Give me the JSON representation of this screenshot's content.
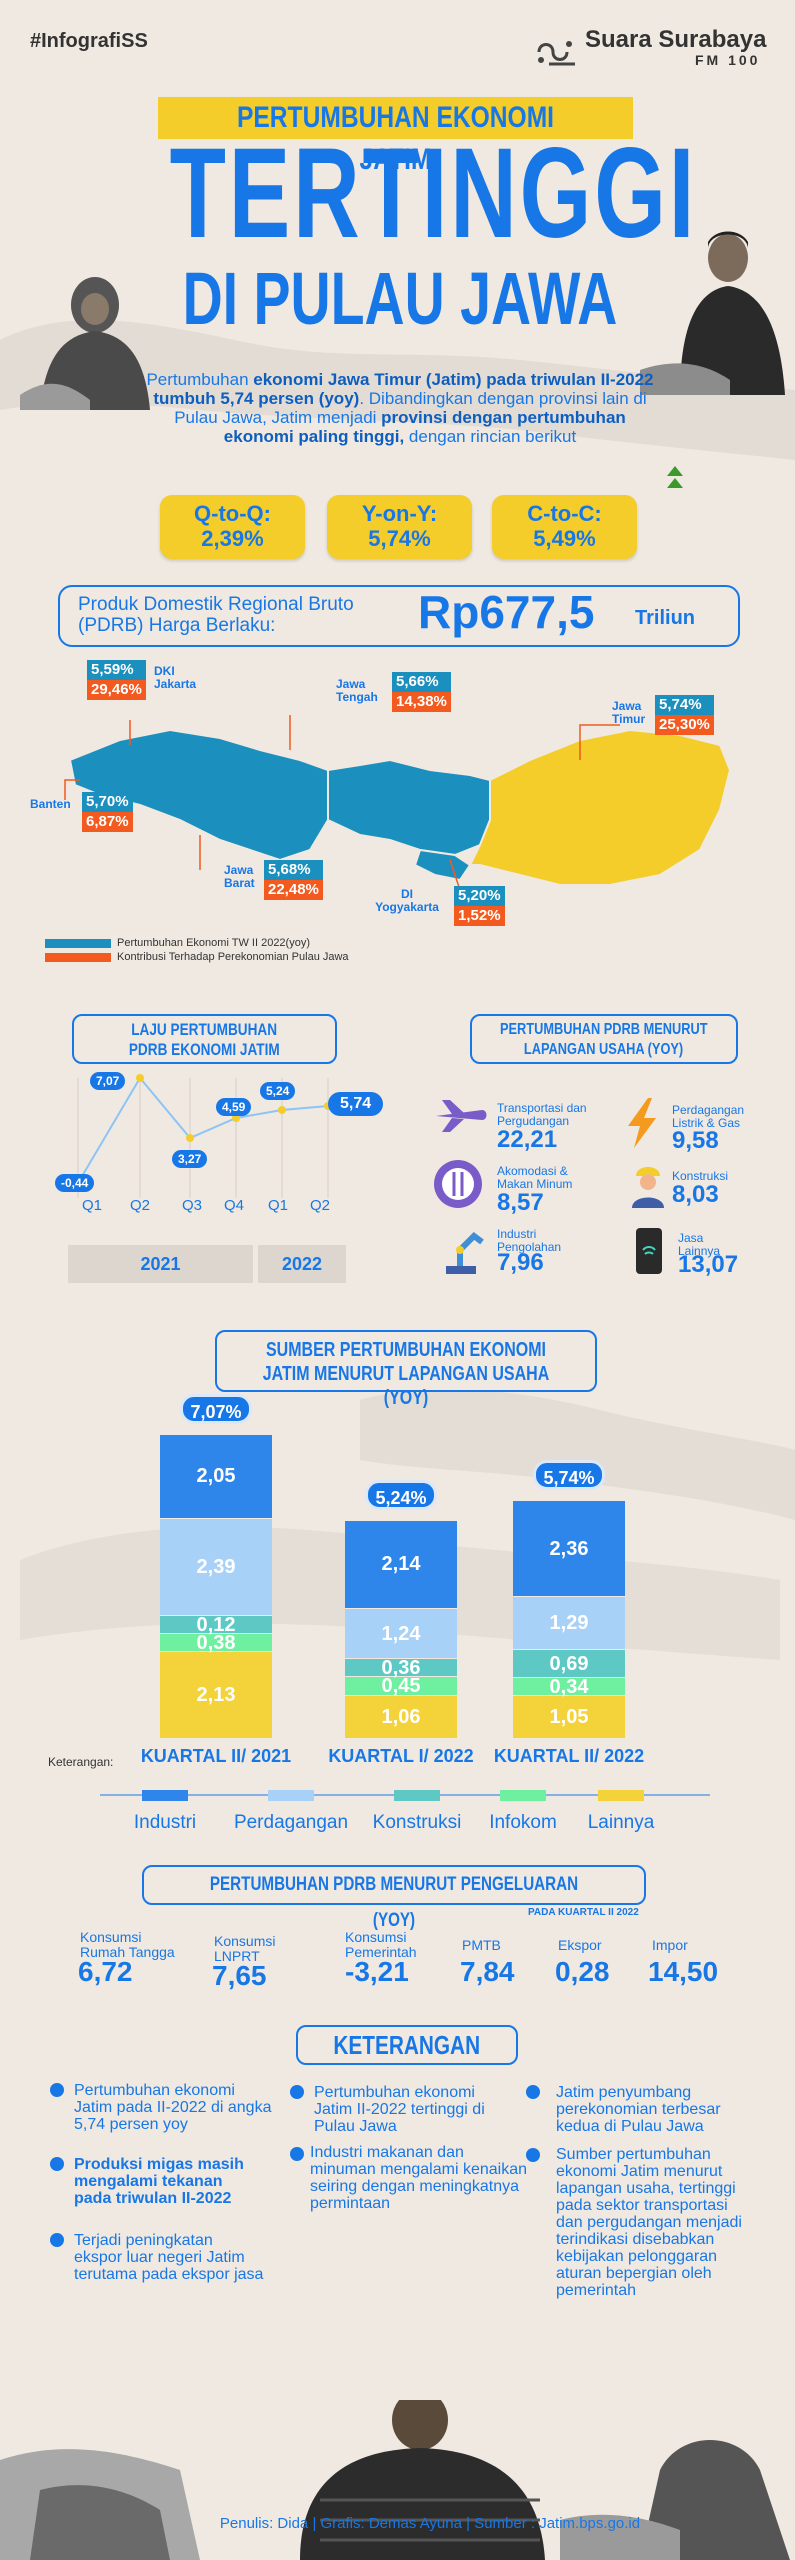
{
  "header": {
    "tag": "#InfografiSS",
    "brand": "Suara Surabaya",
    "brand_sub": "FM 100",
    "title_top": "PERTUMBUHAN EKONOMI JATIM",
    "title_main": "TERTINGGI",
    "title_bottom": "DI PULAU JAWA"
  },
  "intro": {
    "part1": "Pertumbuhan ",
    "bold1": "ekonomi Jawa Timur (Jatim) pada triwulan II-2022 tumbuh 5,74 persen (yoy)",
    "part2": ". Dibandingkan dengan provinsi lain di Pulau Jawa, Jatim menjadi ",
    "bold2": "provinsi dengan pertumbuhan ekonomi paling tinggi,",
    "part3": " dengan rincian berikut"
  },
  "growth": [
    {
      "label": "Q-to-Q:",
      "value": "2,39%"
    },
    {
      "label": "Y-on-Y:",
      "value": "5,74%"
    },
    {
      "label": "C-to-C:",
      "value": "5,49%"
    }
  ],
  "pdrb": {
    "label": "Produk Domestik Regional Bruto (PDRB) Harga Berlaku:",
    "value": "Rp677,5",
    "unit": "Triliun"
  },
  "map": {
    "dki": {
      "name": "DKI Jakarta",
      "growth": "5,59%",
      "contrib": "29,46%"
    },
    "banten": {
      "name": "Banten",
      "growth": "5,70%",
      "contrib": "6,87%"
    },
    "jabar": {
      "name": "Jawa Barat",
      "growth": "5,68%",
      "contrib": "22,48%"
    },
    "jateng": {
      "name": "Jawa Tengah",
      "growth": "5,66%",
      "contrib": "14,38%"
    },
    "diy": {
      "name": "DI Yogyakarta",
      "growth": "5,20%",
      "contrib": "1,52%"
    },
    "jatim": {
      "name": "Jawa Timur",
      "growth": "5,74%",
      "contrib": "25,30%"
    },
    "legend_growth": "Pertumbuhan Ekonomi TW II 2022(yoy)",
    "legend_contrib": "Kontribusi Terhadap Perekonomian Pulau Jawa",
    "colors": {
      "teal": "#1b8fbd",
      "orange": "#f25a1f",
      "jatim": "#f4cd2a"
    }
  },
  "laju": {
    "title_line1": "LAJU PERTUMBUHAN",
    "title_line2": "PDRB EKONOMI JATIM",
    "points": [
      {
        "q": "Q1",
        "v": "-0,44"
      },
      {
        "q": "Q2",
        "v": "7,07"
      },
      {
        "q": "Q3",
        "v": "3,27"
      },
      {
        "q": "Q4",
        "v": "4,59"
      },
      {
        "q": "Q1",
        "v": "5,24"
      },
      {
        "q": "Q2",
        "v": "5,74"
      }
    ],
    "year1": "2021",
    "year2": "2022"
  },
  "sectors": {
    "title_line1": "PERTUMBUHAN PDRB MENURUT",
    "title_line2": "LAPANGAN USAHA (YOY)",
    "items": [
      {
        "name": "Transportasi dan Pergudangan",
        "value": "22,21",
        "icon": "airplane-icon"
      },
      {
        "name": "Perdagangan Listrik & Gas",
        "value": "9,58",
        "icon": "lightning-icon"
      },
      {
        "name": "Akomodasi & Makan Minum",
        "value": "8,57",
        "icon": "utensils-icon"
      },
      {
        "name": "Konstruksi",
        "value": "8,03",
        "icon": "worker-icon"
      },
      {
        "name": "Industri Pengolahan",
        "value": "7,96",
        "icon": "robot-arm-icon"
      },
      {
        "name": "Jasa Lainnya",
        "value": "13,07",
        "icon": "phone-wifi-icon"
      }
    ]
  },
  "sumber": {
    "title_line1": "SUMBER PERTUMBUHAN EKONOMI",
    "title_line2": "JATIM MENURUT LAPANGAN USAHA (YOY)",
    "keterangan": "Keterangan:",
    "legend": [
      "Industri",
      "Perdagangan",
      "Konstruksi",
      "Infokom",
      "Lainnya"
    ]
  },
  "chart_data": {
    "type": "bar",
    "stacked": true,
    "categories": [
      "KUARTAL II/ 2021",
      "KUARTAL I/ 2022",
      "KUARTAL II/ 2022"
    ],
    "totals": [
      "7,07%",
      "5,24%",
      "5,74%"
    ],
    "series": [
      {
        "name": "Lainnya",
        "color": "#f4d23a",
        "values": [
          2.13,
          1.06,
          1.05
        ]
      },
      {
        "name": "Infokom",
        "color": "#6ff0a0",
        "values": [
          0.38,
          0.45,
          0.34
        ]
      },
      {
        "name": "Konstruksi",
        "color": "#5ec9c4",
        "values": [
          0.12,
          0.36,
          0.69
        ]
      },
      {
        "name": "Perdagangan",
        "color": "#a8d1f8",
        "values": [
          2.39,
          1.24,
          1.29
        ]
      },
      {
        "name": "Industri",
        "color": "#2f86ea",
        "values": [
          2.05,
          2.14,
          2.36
        ]
      }
    ],
    "value_labels": [
      [
        "2,13",
        "0,38",
        "0,12",
        "2,39",
        "2,05"
      ],
      [
        "1,06",
        "0,45",
        "0,36",
        "1,24",
        "2,14"
      ],
      [
        "1,05",
        "0,34",
        "0,69",
        "1,29",
        "2,36"
      ]
    ]
  },
  "pengeluaran": {
    "title": "PERTUMBUHAN PDRB MENURUT PENGELUARAN (YOY)",
    "subtitle": "PADA KUARTAL II 2022",
    "items": [
      {
        "name": "Konsumsi Rumah Tangga",
        "value": "6,72"
      },
      {
        "name": "Konsumsi LNPRT",
        "value": "7,65"
      },
      {
        "name": "Konsumsi Pemerintah",
        "value": "-3,21"
      },
      {
        "name": "PMTB",
        "value": "7,84"
      },
      {
        "name": "Ekspor",
        "value": "0,28"
      },
      {
        "name": "Impor",
        "value": "14,50"
      }
    ]
  },
  "keterangan": {
    "title": "KETERANGAN",
    "col1": [
      "Pertumbuhan ekonomi Jatim pada II-2022 di angka 5,74 persen yoy",
      "Produksi migas masih mengalami tekanan pada triwulan II-2022",
      "Terjadi peningkatan ekspor luar negeri Jatim terutama pada ekspor jasa"
    ],
    "col2": [
      "Pertumbuhan ekonomi Jatim II-2022 tertinggi di Pulau Jawa",
      "Industri makanan dan minuman mengalami kenaikan seiring dengan meningkatnya permintaan"
    ],
    "col3": [
      "Jatim penyumbang perekonomian terbesar kedua di Pulau Jawa",
      "Sumber pertumbuhan ekonomi Jatim menurut lapangan usaha, tertinggi pada sektor transportasi dan pergudangan menjadi terindikasi disebabkan kebijakan pelonggaran aturan bepergian oleh pemerintah"
    ]
  },
  "credits": "Penulis: Dida | Grafis: Demas Ayuna | Sumber : Jatim.bps.go.id"
}
